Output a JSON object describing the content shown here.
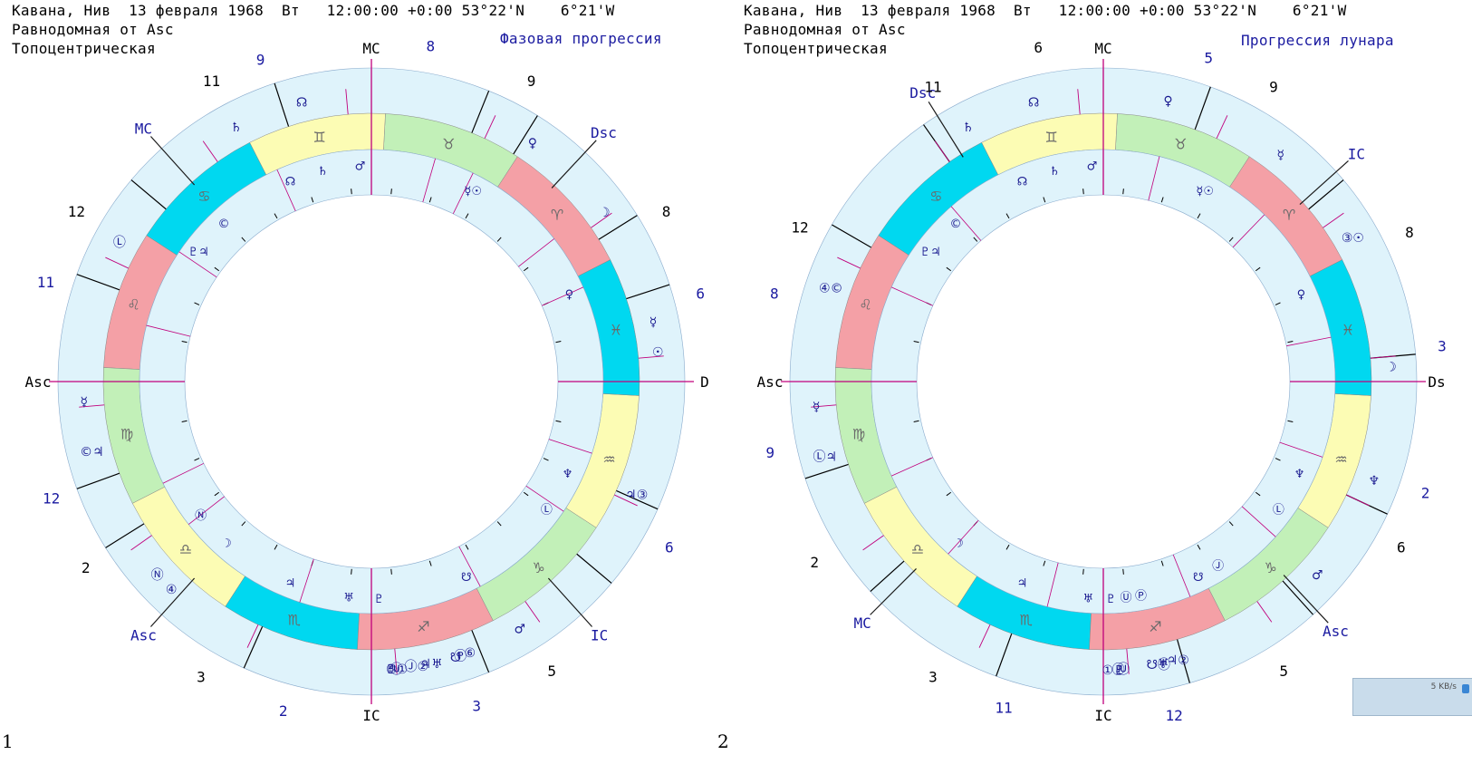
{
  "charts": [
    {
      "id": "left",
      "header": {
        "line1": "Кавана, Нив  13 февраля 1968  Вт   12:00:00 +0:00 53°22'N    6°21'W",
        "line2": "Равнодомная от Asc",
        "line3": "Топоцентрическая",
        "title": "Фазовая прогрессия"
      },
      "panel_number": "1",
      "rotation_deg": 27,
      "house_lines_deg": [
        0,
        90,
        180,
        270,
        18,
        32,
        58,
        68,
        108,
        140,
        160,
        200,
        212,
        246,
        292,
        320,
        336
      ],
      "outer_labels": [
        {
          "text": "MC",
          "angle": 90,
          "color": "#000"
        },
        {
          "text": "IC",
          "angle": 270,
          "color": "#000"
        },
        {
          "text": "Asc",
          "angle": 180,
          "color": "#000"
        },
        {
          "text": "D",
          "angle": 0,
          "color": "#000"
        },
        {
          "text": "Dsc",
          "angle": 47,
          "color": "#1a1aa0"
        },
        {
          "text": "MC",
          "angle": 132,
          "color": "#1a1aa0"
        },
        {
          "text": "Asc",
          "angle": 228,
          "color": "#1a1aa0"
        },
        {
          "text": "IC",
          "angle": 312,
          "color": "#1a1aa0"
        },
        {
          "text": "8",
          "angle": 80,
          "color": "#1a1aa0"
        },
        {
          "text": "9",
          "angle": 62,
          "color": "#000"
        },
        {
          "text": "8",
          "angle": 30,
          "color": "#000"
        },
        {
          "text": "6",
          "angle": 15,
          "color": "#1a1aa0"
        },
        {
          "text": "9",
          "angle": 109,
          "color": "#1a1aa0"
        },
        {
          "text": "11",
          "angle": 118,
          "color": "#000"
        },
        {
          "text": "12",
          "angle": 150,
          "color": "#000"
        },
        {
          "text": "11",
          "angle": 163,
          "color": "#1a1aa0"
        },
        {
          "text": "12",
          "angle": 200,
          "color": "#1a1aa0"
        },
        {
          "text": "2",
          "angle": 213,
          "color": "#000"
        },
        {
          "text": "3",
          "angle": 240,
          "color": "#000"
        },
        {
          "text": "2",
          "angle": 255,
          "color": "#1a1aa0"
        },
        {
          "text": "3",
          "angle": 288,
          "color": "#1a1aa0"
        },
        {
          "text": "5",
          "angle": 302,
          "color": "#000"
        },
        {
          "text": "6",
          "angle": 331,
          "color": "#1a1aa0"
        }
      ],
      "outer_glyphs": [
        {
          "g": "☊",
          "a": 104
        },
        {
          "g": "♄",
          "a": 118
        },
        {
          "g": "♀",
          "a": 56
        },
        {
          "g": "☽",
          "a": 36
        },
        {
          "g": "☿",
          "a": 12
        },
        {
          "g": "☉",
          "a": 6
        },
        {
          "g": "Ⓛ",
          "a": 151
        },
        {
          "g": "☿",
          "a": 184
        },
        {
          "g": "©♃",
          "a": 194
        },
        {
          "g": "Ⓝ",
          "a": 222
        },
        {
          "g": "④",
          "a": 226
        },
        {
          "g": "♃③",
          "a": 337
        },
        {
          "g": "♂",
          "a": 301
        },
        {
          "g": "♇①",
          "a": 275
        },
        {
          "g": "Ⓙ②",
          "a": 279
        },
        {
          "g": "♃♅",
          "a": 282
        },
        {
          "g": "☋",
          "a": 287
        },
        {
          "g": "Ⓟ",
          "a": 288
        },
        {
          "g": "⑥",
          "a": 290
        },
        {
          "g": "Ⓤ",
          "a": 275
        },
        {
          "g": "⑤",
          "a": 274
        }
      ],
      "inner_glyphs": [
        {
          "g": "☊",
          "a": 112
        },
        {
          "g": "♄",
          "a": 103
        },
        {
          "g": "♂",
          "a": 93
        },
        {
          "g": "☿☉",
          "a": 62
        },
        {
          "g": "©",
          "a": 133
        },
        {
          "g": "♇♃",
          "a": 143
        },
        {
          "g": "♀",
          "a": 24
        },
        {
          "g": "♆",
          "a": 335
        },
        {
          "g": "Ⓛ",
          "a": 324
        },
        {
          "g": "☋",
          "a": 296
        },
        {
          "g": "♇",
          "a": 272
        },
        {
          "g": "♅",
          "a": 264
        },
        {
          "g": "♃",
          "a": 248
        },
        {
          "g": "☽",
          "a": 228
        },
        {
          "g": "Ⓝ",
          "a": 218
        }
      ]
    },
    {
      "id": "right",
      "header": {
        "line1": "Кавана, Нив  13 февраля 1968  Вт   12:00:00 +0:00 53°22'N    6°21'W",
        "line2": "Равнодомная от Asc",
        "line3": "Топоцентрическая",
        "title": "Прогрессия лунара"
      },
      "panel_number": "2",
      "rotation_deg": 27,
      "house_lines_deg": [
        0,
        90,
        180,
        270,
        5,
        40,
        70,
        125,
        150,
        198,
        222,
        250,
        286,
        312,
        335
      ],
      "outer_labels": [
        {
          "text": "MC",
          "angle": 90,
          "color": "#000"
        },
        {
          "text": "IC",
          "angle": 270,
          "color": "#000"
        },
        {
          "text": "Asc",
          "angle": 180,
          "color": "#000"
        },
        {
          "text": "Ds",
          "angle": 0,
          "color": "#000"
        },
        {
          "text": "Dsc",
          "angle": 122,
          "color": "#1a1aa0"
        },
        {
          "text": "IC",
          "angle": 42,
          "color": "#1a1aa0"
        },
        {
          "text": "MC",
          "angle": 225,
          "color": "#1a1aa0"
        },
        {
          "text": "Asc",
          "angle": 313,
          "color": "#1a1aa0"
        },
        {
          "text": "6",
          "angle": 101,
          "color": "#000"
        },
        {
          "text": "5",
          "angle": 72,
          "color": "#1a1aa0"
        },
        {
          "text": "9",
          "angle": 60,
          "color": "#000"
        },
        {
          "text": "8",
          "angle": 26,
          "color": "#000"
        },
        {
          "text": "3",
          "angle": 6,
          "color": "#1a1aa0"
        },
        {
          "text": "11",
          "angle": 120,
          "color": "#000"
        },
        {
          "text": "12",
          "angle": 153,
          "color": "#000"
        },
        {
          "text": "8",
          "angle": 165,
          "color": "#1a1aa0"
        },
        {
          "text": "9",
          "angle": 192,
          "color": "#1a1aa0"
        },
        {
          "text": "2",
          "angle": 212,
          "color": "#000"
        },
        {
          "text": "3",
          "angle": 240,
          "color": "#000"
        },
        {
          "text": "11",
          "angle": 253,
          "color": "#1a1aa0"
        },
        {
          "text": "12",
          "angle": 282,
          "color": "#1a1aa0"
        },
        {
          "text": "5",
          "angle": 302,
          "color": "#000"
        },
        {
          "text": "6",
          "angle": 331,
          "color": "#000"
        },
        {
          "text": "2",
          "angle": 341,
          "color": "#1a1aa0"
        }
      ],
      "outer_glyphs": [
        {
          "g": "☊",
          "a": 104
        },
        {
          "g": "♄",
          "a": 118
        },
        {
          "g": "♀",
          "a": 77
        },
        {
          "g": "☿",
          "a": 52
        },
        {
          "g": "③☉",
          "a": 30
        },
        {
          "g": "☽",
          "a": 3
        },
        {
          "g": "④©",
          "a": 161
        },
        {
          "g": "☿",
          "a": 185
        },
        {
          "g": "Ⓛ♃",
          "a": 195
        },
        {
          "g": "♆",
          "a": 340
        },
        {
          "g": "♂",
          "a": 318
        },
        {
          "g": "①♇",
          "a": 272
        },
        {
          "g": "Ⓙ",
          "a": 273
        },
        {
          "g": "Ⓤ",
          "a": 274
        },
        {
          "g": "♃②",
          "a": 285
        },
        {
          "g": "♅",
          "a": 282
        },
        {
          "g": "☋Ⓟ",
          "a": 281
        }
      ],
      "inner_glyphs": [
        {
          "g": "☊",
          "a": 112
        },
        {
          "g": "♄",
          "a": 103
        },
        {
          "g": "♂",
          "a": 93
        },
        {
          "g": "☿☉",
          "a": 62
        },
        {
          "g": "©",
          "a": 133
        },
        {
          "g": "♇♃",
          "a": 143
        },
        {
          "g": "♀",
          "a": 24
        },
        {
          "g": "♆",
          "a": 335
        },
        {
          "g": "Ⓛ",
          "a": 324
        },
        {
          "g": "Ⓙ",
          "a": 302
        },
        {
          "g": "☋",
          "a": 296
        },
        {
          "g": "Ⓟ",
          "a": 280
        },
        {
          "g": "♇",
          "a": 272
        },
        {
          "g": "♅",
          "a": 266
        },
        {
          "g": "Ⓤ",
          "a": 276
        },
        {
          "g": "♃",
          "a": 248
        },
        {
          "g": "☽",
          "a": 228
        }
      ]
    }
  ],
  "zodiac": [
    {
      "sign": "♈",
      "color": "#f4a0a6"
    },
    {
      "sign": "♉",
      "color": "#c2f0b8"
    },
    {
      "sign": "♊",
      "color": "#fcfcb4"
    },
    {
      "sign": "♋",
      "color": "#00d8f0"
    },
    {
      "sign": "♌",
      "color": "#f4a0a6"
    },
    {
      "sign": "♍",
      "color": "#c2f0b8"
    },
    {
      "sign": "♎",
      "color": "#fcfcb4"
    },
    {
      "sign": "♏",
      "color": "#00d8f0"
    },
    {
      "sign": "♐",
      "color": "#f4a0a6"
    },
    {
      "sign": "♑",
      "color": "#c2f0b8"
    },
    {
      "sign": "♒",
      "color": "#fcfcb4"
    },
    {
      "sign": "♓",
      "color": "#00d8f0"
    }
  ],
  "colors": {
    "outer_ring": "#dff3fb",
    "axis": "#c0007c",
    "house_line": "#000000",
    "glyph": "#1a1a90"
  },
  "widget": {
    "speed": "5 KB/s"
  }
}
